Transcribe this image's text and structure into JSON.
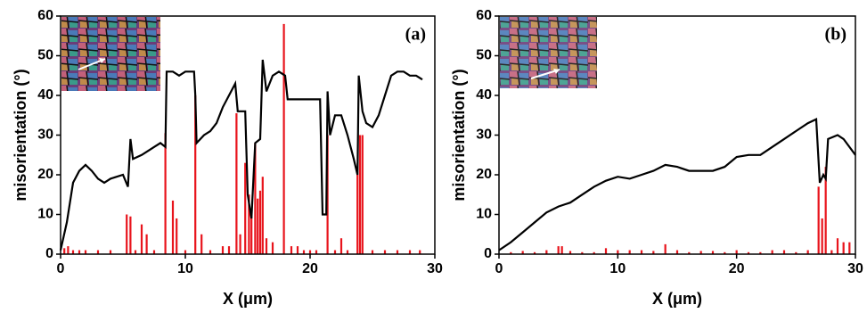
{
  "chart_data": [
    {
      "type": "line",
      "annotation": "(a)",
      "xlabel": "X (μm)",
      "ylabel": "misorientation (°)",
      "xlim": [
        0,
        30
      ],
      "ylim": [
        0,
        60
      ],
      "xticks": [
        0,
        10,
        20,
        30
      ],
      "yticks": [
        0,
        10,
        20,
        30,
        40,
        50,
        60
      ],
      "series": [
        {
          "type": "line",
          "color": "#000000",
          "x": [
            0,
            0.5,
            1,
            1.5,
            2,
            2.5,
            3,
            3.5,
            4,
            4.5,
            5,
            5.4,
            5.6,
            5.8,
            6.5,
            7,
            7.5,
            8,
            8.4,
            8.5,
            9,
            9.5,
            10,
            10.7,
            10.8,
            10.9,
            11.5,
            12,
            12.5,
            13,
            13.5,
            14,
            14.2,
            14.8,
            15,
            15.3,
            15.6,
            16,
            16.2,
            16.5,
            17,
            17.5,
            18,
            18.2,
            19,
            20,
            20.8,
            21,
            21.3,
            21.4,
            21.6,
            22,
            22.5,
            23,
            23.5,
            23.8,
            23.9,
            24.2,
            24.5,
            25,
            25.5,
            26,
            26.5,
            27,
            27.5,
            28,
            28.5,
            29
          ],
          "values": [
            1,
            8,
            18,
            21,
            22.5,
            21,
            19,
            18,
            19,
            19.5,
            20,
            17,
            29,
            24,
            25,
            26,
            27,
            28,
            27,
            46,
            46,
            45,
            46,
            46,
            40,
            28,
            30,
            31,
            33,
            37,
            40,
            43,
            36,
            36,
            15,
            9,
            28,
            29,
            49,
            41,
            45,
            46,
            45,
            39,
            39,
            39,
            39,
            10,
            10,
            41,
            30,
            35,
            35,
            30,
            24,
            20,
            45,
            36,
            33,
            32,
            35,
            40,
            45,
            46,
            46,
            45,
            45,
            44
          ]
        },
        {
          "type": "bar",
          "color": "#e8141c",
          "x": [
            0.3,
            0.6,
            1,
            1.5,
            2,
            3,
            4,
            5.3,
            5.6,
            6,
            6.5,
            6.9,
            7.5,
            8.4,
            9,
            9.3,
            10,
            10.8,
            11.3,
            12,
            13,
            13.5,
            14.1,
            14.4,
            14.8,
            15.1,
            15.3,
            15.6,
            15.8,
            16,
            16.2,
            16.5,
            17,
            17.9,
            18.5,
            19,
            19.5,
            20,
            20.5,
            21.4,
            22,
            22.5,
            23,
            23.8,
            24,
            24.2,
            25,
            26,
            27,
            28,
            28.8
          ],
          "values": [
            1.5,
            2,
            1,
            1,
            1,
            1,
            1,
            10,
            9.5,
            1,
            7.5,
            5,
            1,
            30.5,
            13.5,
            9,
            1,
            40,
            5,
            1,
            2,
            2,
            35.5,
            5,
            23,
            15,
            10,
            28,
            14,
            16,
            19.5,
            4,
            3,
            58,
            2,
            2,
            1,
            1,
            1,
            30,
            1,
            4,
            1,
            20,
            30,
            30,
            1,
            1,
            1,
            1,
            1
          ]
        }
      ]
    },
    {
      "type": "line",
      "annotation": "(b)",
      "xlabel": "X (μm)",
      "ylabel": "misorientation (°)",
      "xlim": [
        0,
        30
      ],
      "ylim": [
        0,
        60
      ],
      "xticks": [
        0,
        10,
        20,
        30
      ],
      "yticks": [
        0,
        10,
        20,
        30,
        40,
        50,
        60
      ],
      "series": [
        {
          "type": "line",
          "color": "#000000",
          "x": [
            0,
            1,
            2,
            3,
            4,
            5,
            6,
            7,
            8,
            9,
            10,
            11,
            12,
            13,
            14,
            15,
            16,
            17,
            18,
            19,
            20,
            21,
            22,
            23,
            24,
            25,
            26,
            26.7,
            27,
            27.3,
            27.5,
            27.7,
            28.5,
            29,
            30
          ],
          "values": [
            1,
            3,
            5.5,
            8,
            10.5,
            12,
            13,
            15,
            17,
            18.5,
            19.5,
            19,
            20,
            21,
            22.5,
            22,
            21,
            21,
            21,
            22,
            24.5,
            25,
            25,
            27,
            29,
            31,
            33,
            34,
            18,
            20,
            19,
            29,
            30,
            29,
            25
          ]
        },
        {
          "type": "bar",
          "color": "#e8141c",
          "x": [
            1,
            2,
            3,
            4,
            5,
            5.3,
            6,
            7,
            8,
            9,
            10,
            11,
            12,
            13,
            14,
            15,
            16,
            17,
            18,
            19,
            20,
            21,
            22,
            23,
            24,
            25,
            26,
            26.9,
            27.2,
            27.5,
            28,
            28.5,
            29,
            29.5
          ],
          "values": [
            0.5,
            0.8,
            0.5,
            1,
            2,
            2,
            0.8,
            0.5,
            0.5,
            1.5,
            1,
            1,
            1,
            0.8,
            2.5,
            1,
            0.5,
            0.8,
            0.8,
            0.5,
            1,
            0.5,
            0.5,
            1,
            1,
            0.5,
            1,
            17,
            9,
            22,
            1,
            4,
            3,
            3
          ]
        }
      ]
    }
  ]
}
